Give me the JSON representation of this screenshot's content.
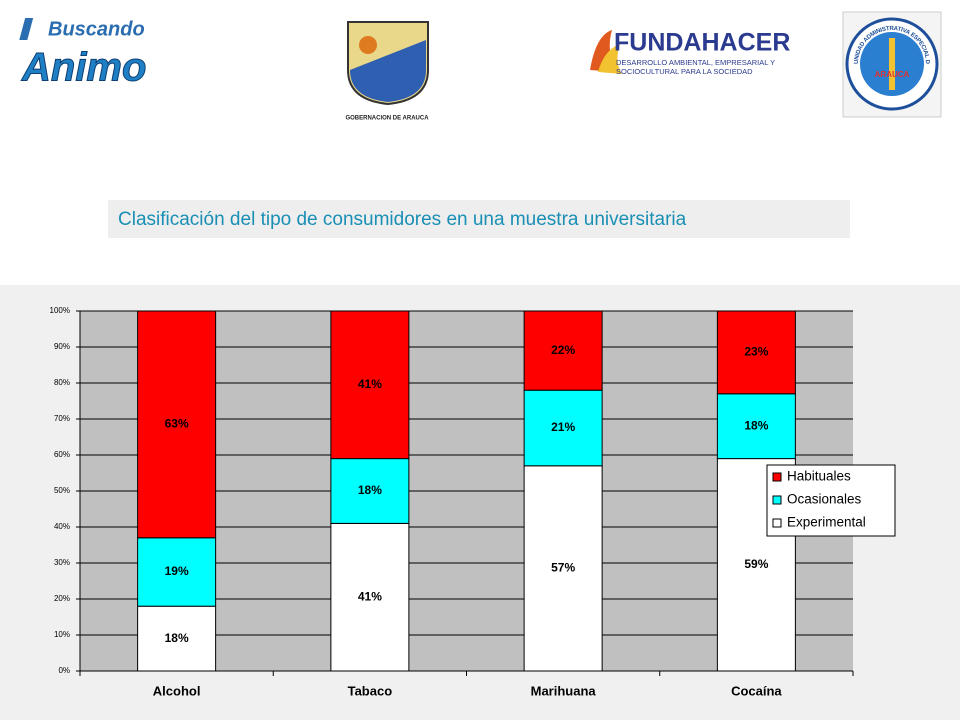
{
  "header": {
    "logo1": {
      "line1": "Buscando",
      "line2": "Animo"
    },
    "logo2": {
      "caption": "GOBERNACION DE ARAUCA"
    },
    "logo3": {
      "name": "FUNDAHACER",
      "line1": "DESARROLLO AMBIENTAL, EMPRESARIAL Y",
      "line2": "SOCIOCULTURAL PARA LA SOCIEDAD"
    },
    "logo4": {
      "ring": "UNIDAD ADMINISTRATIVA ESPECIAL DE SALUD",
      "center": "ARAUCA"
    }
  },
  "chart_data": {
    "type": "stacked_bar",
    "title": "Clasificación del tipo de consumidores en una muestra universitaria",
    "categories": [
      "Alcohol",
      "Tabaco",
      "Marihuana",
      "Cocaína"
    ],
    "series": [
      {
        "name": "Experimental",
        "color": "#ffffff",
        "values": [
          18,
          41,
          57,
          59
        ],
        "value_labels": [
          "18%",
          "41%",
          "57%",
          "59%"
        ]
      },
      {
        "name": "Ocasionales",
        "color": "#00ffff",
        "values": [
          19,
          18,
          21,
          18
        ],
        "value_labels": [
          "19%",
          "18%",
          "21%",
          "18%"
        ]
      },
      {
        "name": "Habituales",
        "color": "#ff0000",
        "values": [
          63,
          41,
          22,
          23
        ],
        "value_labels": [
          "63%",
          "41%",
          "22%",
          "23%"
        ]
      }
    ],
    "ylim": [
      0,
      100
    ],
    "yticks": [
      {
        "value": 0,
        "label": "0%"
      },
      {
        "value": 10,
        "label": "10%"
      },
      {
        "value": 20,
        "label": "20%"
      },
      {
        "value": 30,
        "label": "30%"
      },
      {
        "value": 40,
        "label": "40%"
      },
      {
        "value": 50,
        "label": "50%"
      },
      {
        "value": 60,
        "label": "60%"
      },
      {
        "value": 70,
        "label": "70%"
      },
      {
        "value": 80,
        "label": "80%"
      },
      {
        "value": 90,
        "label": "90%"
      },
      {
        "value": 100,
        "label": "100%"
      }
    ],
    "grid": true,
    "legend": "right"
  }
}
